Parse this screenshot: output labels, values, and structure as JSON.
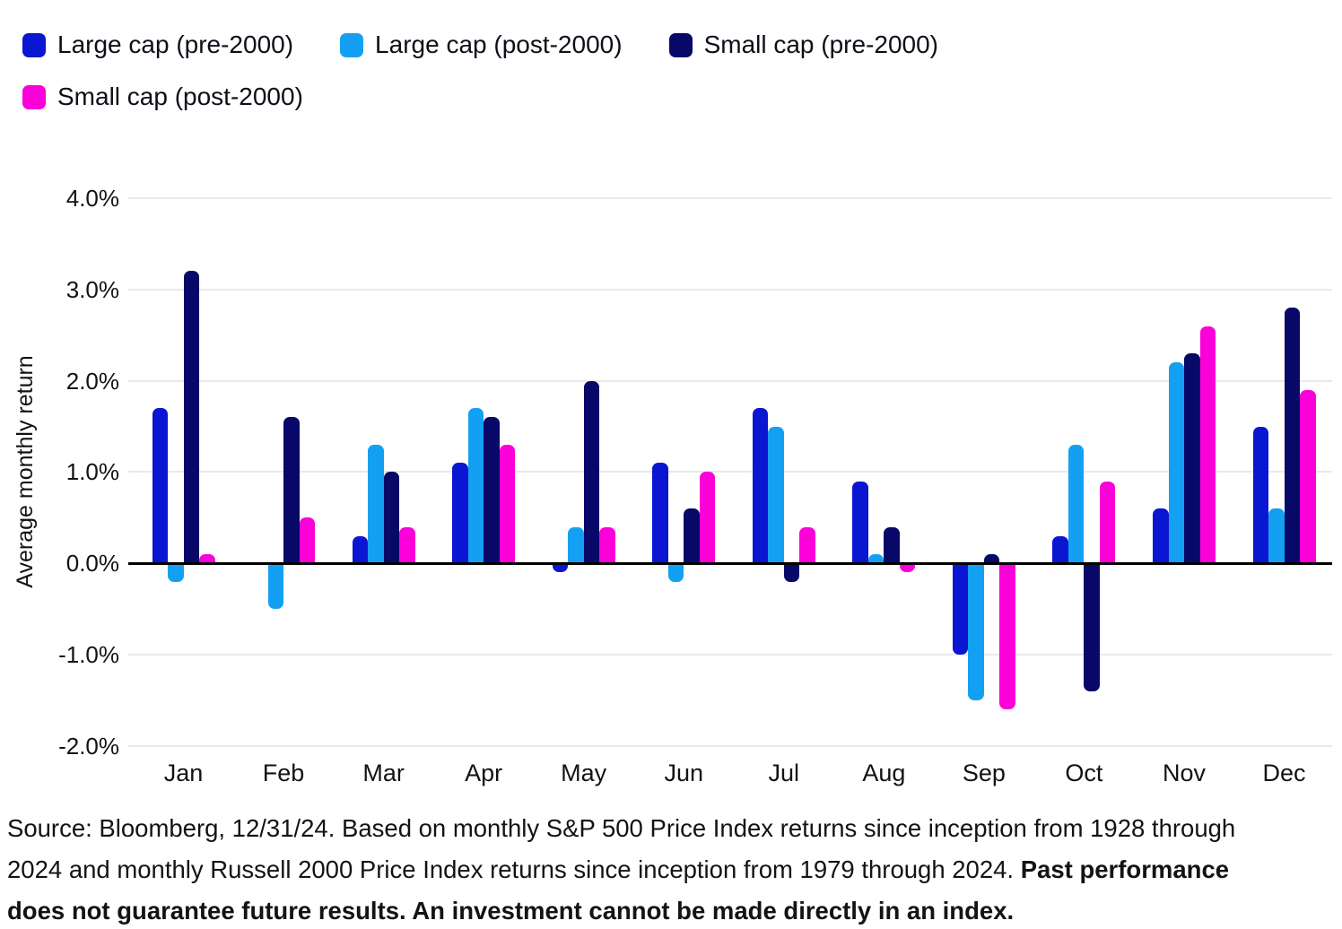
{
  "chart_data": {
    "type": "bar",
    "title": "",
    "xlabel": "",
    "ylabel": "Average monthly return",
    "ylim": [
      -2.0,
      4.0
    ],
    "grid": true,
    "legend_position": "top-left",
    "ytick_values": [
      4.0,
      3.0,
      2.0,
      1.0,
      0.0,
      -1.0,
      -2.0
    ],
    "ytick_labels": [
      "4.0%",
      "3.0%",
      "2.0%",
      "1.0%",
      "0.0%",
      "-1.0%",
      "-2.0%"
    ],
    "categories": [
      "Jan",
      "Feb",
      "Mar",
      "Apr",
      "May",
      "Jun",
      "Jul",
      "Aug",
      "Sep",
      "Oct",
      "Nov",
      "Dec"
    ],
    "series": [
      {
        "name": "Large cap (pre-2000)",
        "color": "#0A16D2",
        "values": [
          1.7,
          0.0,
          0.3,
          1.1,
          -0.1,
          1.1,
          1.7,
          0.9,
          -1.0,
          0.3,
          0.6,
          1.5
        ]
      },
      {
        "name": "Large cap (post-2000)",
        "color": "#14A0F2",
        "values": [
          -0.2,
          -0.5,
          1.3,
          1.7,
          0.4,
          -0.2,
          1.5,
          0.1,
          -1.5,
          1.3,
          2.2,
          0.6
        ]
      },
      {
        "name": "Small cap (pre-2000)",
        "color": "#080868",
        "values": [
          3.2,
          1.6,
          1.0,
          1.6,
          2.0,
          0.6,
          -0.2,
          0.4,
          0.1,
          -1.4,
          2.3,
          2.8
        ]
      },
      {
        "name": "Small cap (post-2000)",
        "color": "#FB00D8",
        "values": [
          0.1,
          0.5,
          0.4,
          1.3,
          0.4,
          1.0,
          0.4,
          -0.1,
          -1.6,
          0.9,
          2.6,
          1.9
        ]
      }
    ],
    "value_unit": "%"
  },
  "footer": {
    "segments": [
      {
        "text": "Source: Bloomberg, 12/31/24. Based on monthly S&P 500 Price Index returns since inception from 1928 through 2024 and monthly Russell 2000 Price Index returns since inception from 1979 through 2024. ",
        "bold": false
      },
      {
        "text": "Past performance does not guarantee future results. An investment cannot be made directly in an index.",
        "bold": true
      }
    ]
  }
}
